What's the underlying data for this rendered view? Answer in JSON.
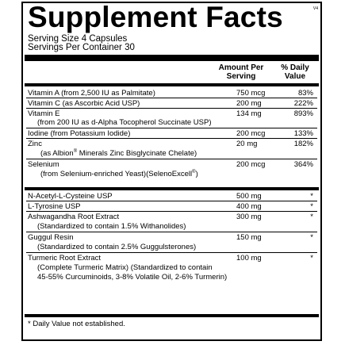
{
  "title": "Supplement Facts",
  "version": "V4",
  "serving_size": "Serving Size 4 Capsules",
  "servings_per_container": "Servings Per Container 30",
  "headers": {
    "amount_line1": "Amount Per",
    "amount_line2": "Serving",
    "dv_line1": "% Daily",
    "dv_line2": "Value"
  },
  "vitamins": [
    {
      "name": "Vitamin A (from 2,500 IU as Palmitate)",
      "amount": "750 mcg",
      "dv": "83%"
    },
    {
      "name": "Vitamin C (as Ascorbic Acid USP)",
      "amount": "200 mg",
      "dv": "222%"
    },
    {
      "name": "Vitamin E",
      "amount": "134 mg",
      "dv": "893%",
      "sub": "(from 200 IU as d-Alpha Tocopherol Succinate USP)"
    },
    {
      "name": "Iodine (from Potassium Iodide)",
      "amount": "200 mcg",
      "dv": "133%"
    },
    {
      "name": "Zinc",
      "amount": "20 mg",
      "dv": "182%",
      "sub_prefix": "(as Albion",
      "sub_reg": "®",
      "sub_suffix": " Minerals Zinc Bisglycinate Chelate)"
    },
    {
      "name": "Selenium",
      "amount": "200 mcg",
      "dv": "364%",
      "sub_prefix": "(from Selenium-enriched Yeast)(SelenoExcell",
      "sub_reg": "®",
      "sub_suffix": ")"
    }
  ],
  "others": [
    {
      "name": "N-Acetyl-L-Cysteine USP",
      "amount": "500 mg",
      "dv": "*"
    },
    {
      "name": "L-Tyrosine USP",
      "amount": "400 mg",
      "dv": "*"
    },
    {
      "name": "Ashwagandha Root Extract",
      "amount": "300 mg",
      "dv": "*",
      "sub": "(Standardized to contain 1.5% Withanolides)"
    },
    {
      "name": "Guggul Resin",
      "amount": "150 mg",
      "dv": "*",
      "sub": "(Standardized to contain 2.5% Guggulsterones)"
    },
    {
      "name": "Turmeric Root Extract",
      "amount": "100 mg",
      "dv": "*",
      "sub": "(Complete Turmeric Matrix) (Standardized to contain",
      "sub2": "45-55% Curcuminoids, 3-8% Volatile Oil, 2-6% Turmerin)"
    }
  ],
  "footnote": "* Daily Value not established."
}
